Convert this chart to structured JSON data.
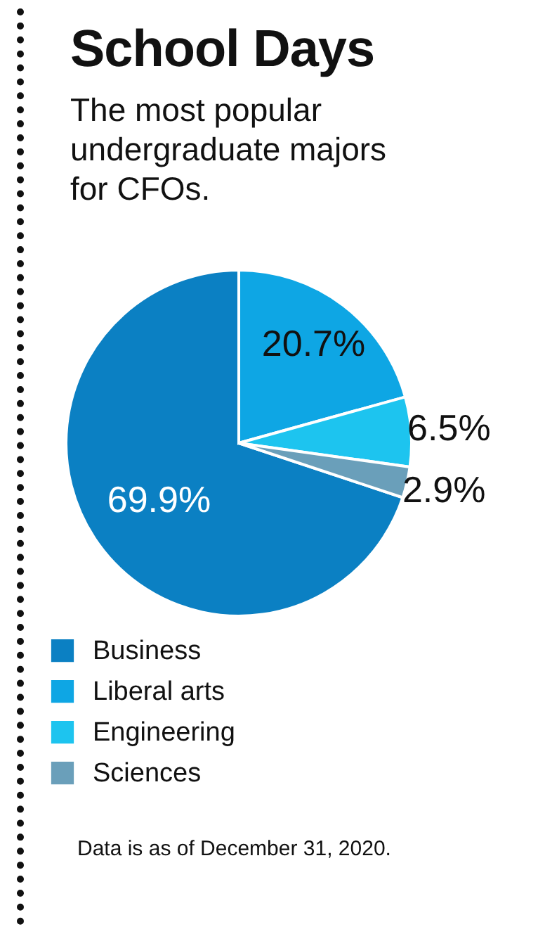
{
  "chart_data": {
    "type": "pie",
    "title": "School Days",
    "subtitle": "The most popular undergraduate majors for CFOs.",
    "categories": [
      "Business",
      "Liberal arts",
      "Engineering",
      "Sciences"
    ],
    "values": [
      69.9,
      20.7,
      6.5,
      2.9
    ],
    "colors": [
      "#0b80c3",
      "#0ea6e4",
      "#1dc4ef",
      "#6a9fba"
    ],
    "value_labels": [
      "69.9%",
      "20.7%",
      "6.5%",
      "2.9%"
    ],
    "legend": "bottom",
    "annotations": [
      "Data is as of December 31, 2020."
    ]
  }
}
